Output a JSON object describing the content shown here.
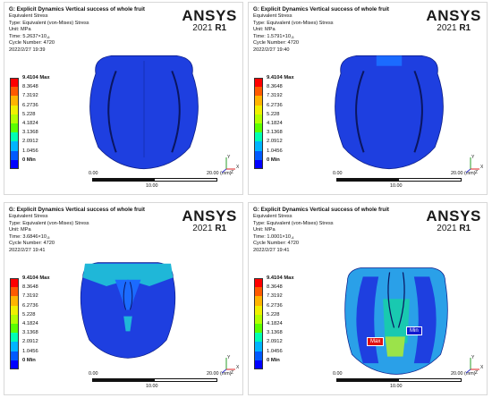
{
  "panels": [
    {
      "title": "G: Explicit Dynamics Vertical success of whole fruit",
      "result": "Equivalent Stress",
      "type": "Type: Equivalent (von-Mises) Stress",
      "unit": "Unit: MPa",
      "time_prefix": "Time: 5.2637",
      "time_exp": "-6",
      "cycle": "Cycle Number: 4720",
      "date": "2022/2/27 19:39",
      "brand": "ANSYS",
      "release_year": "2021",
      "release_tag": "R1"
    },
    {
      "title": "G: Explicit Dynamics Vertical success of whole fruit",
      "result": "Equivalent Stress",
      "type": "Type: Equivalent (von-Mises) Stress",
      "unit": "Unit: MPa",
      "time_prefix": "Time: 1.5791",
      "time_exp": "-5",
      "cycle": "Cycle Number: 4720",
      "date": "2022/2/27 19:40",
      "brand": "ANSYS",
      "release_year": "2021",
      "release_tag": "R1"
    },
    {
      "title": "G: Explicit Dynamics Vertical success of whole fruit",
      "result": "Equivalent Stress",
      "type": "Type: Equivalent (von-Mises) Stress",
      "unit": "Unit: MPa",
      "time_prefix": "Time: 3.6846",
      "time_exp": "-5",
      "cycle": "Cycle Number: 4720",
      "date": "2022/2/27 19:41",
      "brand": "ANSYS",
      "release_year": "2021",
      "release_tag": "R1"
    },
    {
      "title": "G: Explicit Dynamics Vertical success of whole fruit",
      "result": "Equivalent Stress",
      "type": "Type: Equivalent (von-Mises) Stress",
      "unit": "Unit: MPa",
      "time_prefix": "Time: 1.0001",
      "time_exp": "-4",
      "cycle": "Cycle Number: 4720",
      "date": "2022/2/27 19:41",
      "brand": "ANSYS",
      "release_year": "2021",
      "release_tag": "R1",
      "max_tag": "Max",
      "min_tag": "Min"
    }
  ],
  "legend": {
    "labels": [
      "9.4104 Max",
      "8.3648",
      "7.3192",
      "6.2736",
      "5.228",
      "4.1824",
      "3.1368",
      "2.0912",
      "1.0456",
      "0 Min"
    ],
    "colors": [
      "#ff0000",
      "#ff5a00",
      "#ffb400",
      "#f0f000",
      "#b4ff00",
      "#5aff00",
      "#00ffb4",
      "#00b4ff",
      "#005aff",
      "#0000ff"
    ]
  },
  "scale": {
    "left": "0.00",
    "right": "20.00 (mm)",
    "mid": "10.00"
  },
  "axes": {
    "x": "X",
    "y": "Y",
    "z": "Z"
  }
}
